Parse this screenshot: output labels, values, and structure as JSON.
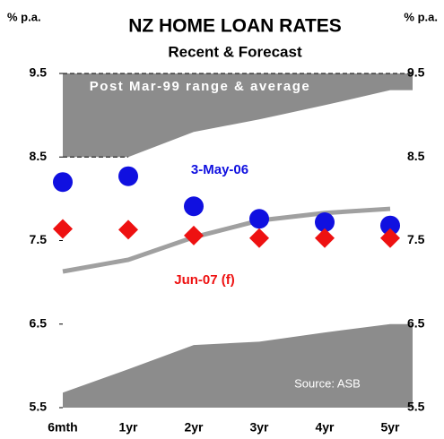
{
  "chart_data": {
    "type": "line",
    "title": "NZ HOME LOAN RATES",
    "subtitle": "Recent & Forecast",
    "y_label": "% p.a.",
    "y2_label": "% p.a.",
    "categories": [
      "6mth",
      "1yr",
      "2yr",
      "3yr",
      "4yr",
      "5yr"
    ],
    "range": {
      "label": "Post Mar-99 range & average",
      "color": "#8c8c8c",
      "average_color": "#a0a0a0",
      "max": [
        8.5,
        8.5,
        8.8,
        8.95,
        9.12,
        9.3
      ],
      "min": [
        5.68,
        5.96,
        6.25,
        6.29,
        6.4,
        6.5
      ],
      "average": [
        7.13,
        7.27,
        7.54,
        7.74,
        7.83,
        7.88
      ]
    },
    "series": [
      {
        "name": "3-May-06",
        "color": "#1010e0",
        "marker": "circle",
        "values": [
          8.2,
          8.27,
          7.91,
          7.76,
          7.72,
          7.68
        ]
      },
      {
        "name": "Jun-07 (f)",
        "color": "#ee1111",
        "marker": "diamond",
        "values": [
          7.64,
          7.63,
          7.56,
          7.53,
          7.53,
          7.53
        ]
      }
    ],
    "ylim": [
      5.5,
      9.5
    ],
    "yticks": [
      5.5,
      6.5,
      7.5,
      8.5,
      9.5
    ],
    "y2lim": [
      5.5,
      9.5
    ],
    "y2ticks": [
      5.5,
      6.5,
      7.5,
      8.5,
      9.5
    ],
    "annotation": "Source: ASB"
  }
}
